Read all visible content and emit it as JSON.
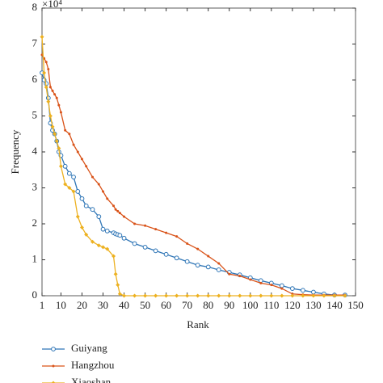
{
  "chart_data": {
    "type": "line",
    "x_label": "Rank",
    "y_label": "Frequency",
    "y_multiplier": "×10⁴",
    "x": [
      1,
      2,
      3,
      4,
      5,
      6,
      7,
      8,
      9,
      10,
      12,
      14,
      16,
      18,
      20,
      22,
      25,
      28,
      30,
      32,
      35,
      36,
      37,
      38,
      40,
      45,
      50,
      55,
      60,
      65,
      70,
      75,
      80,
      85,
      90,
      95,
      100,
      105,
      110,
      115,
      120,
      125,
      130,
      135,
      140,
      145
    ],
    "series": [
      {
        "name": "Guiyang",
        "color": "#2e75b6",
        "marker": "circle",
        "values": [
          6.2,
          6.0,
          5.9,
          5.5,
          4.8,
          4.6,
          4.5,
          4.3,
          4.0,
          3.9,
          3.6,
          3.4,
          3.3,
          2.9,
          2.7,
          2.5,
          2.4,
          2.2,
          1.85,
          1.8,
          1.75,
          1.72,
          1.7,
          1.68,
          1.6,
          1.45,
          1.35,
          1.25,
          1.15,
          1.05,
          0.95,
          0.85,
          0.8,
          0.72,
          0.65,
          0.58,
          0.5,
          0.42,
          0.35,
          0.28,
          0.2,
          0.15,
          0.1,
          0.05,
          0.02,
          0.02
        ]
      },
      {
        "name": "Hangzhou",
        "color": "#d95319",
        "marker": "dot",
        "values": [
          6.7,
          6.6,
          6.5,
          6.3,
          5.8,
          5.7,
          5.6,
          5.5,
          5.3,
          5.1,
          4.6,
          4.5,
          4.2,
          4.0,
          3.8,
          3.6,
          3.3,
          3.1,
          2.9,
          2.7,
          2.5,
          2.4,
          2.35,
          2.3,
          2.2,
          2.0,
          1.95,
          1.85,
          1.75,
          1.65,
          1.45,
          1.3,
          1.1,
          0.9,
          0.6,
          0.55,
          0.45,
          0.35,
          0.3,
          0.2,
          0.05,
          0.03,
          0.02,
          0.02,
          0.02,
          0.02
        ]
      },
      {
        "name": "Xiaoshan",
        "color": "#edb120",
        "marker": "diamond",
        "values": [
          7.2,
          6.2,
          5.8,
          5.4,
          5.0,
          4.7,
          4.5,
          4.3,
          4.1,
          3.6,
          3.1,
          3.0,
          2.9,
          2.2,
          1.9,
          1.7,
          1.5,
          1.4,
          1.35,
          1.3,
          1.1,
          0.6,
          0.3,
          0.05,
          0,
          0,
          0,
          0,
          0,
          0,
          0,
          0,
          0,
          0,
          0,
          0,
          0,
          0,
          0,
          0,
          0,
          0,
          0,
          0,
          0,
          0
        ]
      }
    ],
    "xlim": [
      1,
      150
    ],
    "ylim": [
      0,
      8
    ],
    "xticks": [
      1,
      10,
      20,
      30,
      40,
      50,
      60,
      70,
      80,
      90,
      100,
      110,
      120,
      130,
      140,
      150
    ],
    "yticks": [
      0,
      1,
      2,
      3,
      4,
      5,
      6,
      7,
      8
    ],
    "legend": "below"
  }
}
